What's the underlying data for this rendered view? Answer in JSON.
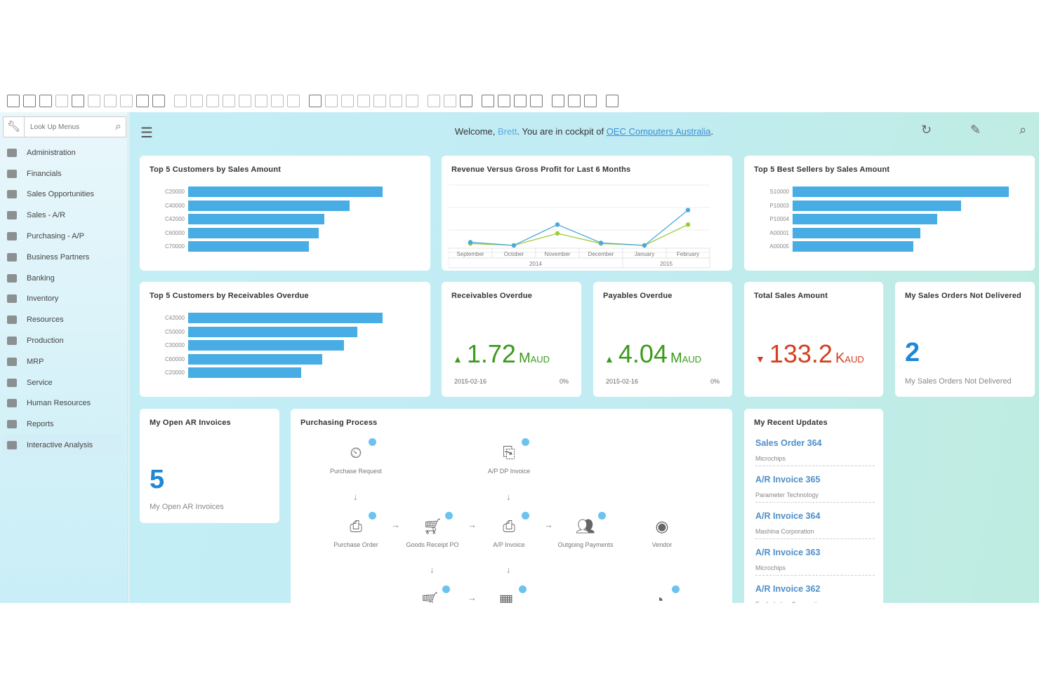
{
  "toolbar": {
    "icons": [
      "form-settings-icon",
      "print-icon",
      "email-icon",
      "export-pdf-icon",
      "print-preview-icon",
      "excel-icon",
      "word-icon",
      "text-icon",
      "move-icon",
      "layout-icon",
      "find-icon",
      "add-icon",
      "first-icon",
      "previous-icon",
      "next-icon",
      "last-icon",
      "filter-icon",
      "sort-icon",
      "base-document-icon",
      "target-document-icon",
      "journal-icon",
      "gross-profit-icon",
      "settings-icon",
      "columns-icon",
      "query-icon",
      "draft-icon",
      "edit-icon",
      "report-icon",
      "messages-icon",
      "calendar-icon",
      "users-icon",
      "cockpit-icon",
      "widgets-icon",
      "chart-icon",
      "analysis-icon",
      "help-icon"
    ]
  },
  "sidebar": {
    "search_placeholder": "Look Up Menus",
    "items": [
      {
        "label": "Administration"
      },
      {
        "label": "Financials"
      },
      {
        "label": "Sales Opportunities"
      },
      {
        "label": "Sales - A/R"
      },
      {
        "label": "Purchasing - A/P"
      },
      {
        "label": "Business Partners"
      },
      {
        "label": "Banking"
      },
      {
        "label": "Inventory"
      },
      {
        "label": "Resources"
      },
      {
        "label": "Production"
      },
      {
        "label": "MRP"
      },
      {
        "label": "Service"
      },
      {
        "label": "Human Resources"
      },
      {
        "label": "Reports"
      },
      {
        "label": "Interactive Analysis"
      }
    ],
    "selected": "Interactive Analysis"
  },
  "header": {
    "welcome_prefix": "Welcome, ",
    "user": "Brett",
    "welcome_mid": ". You are in cockpit of ",
    "company": "OEC Computers Australia",
    "welcome_suffix": "."
  },
  "colors": {
    "bar": "#48ade4",
    "revenue": "#4aa8dc",
    "gross_profit": "#9ccc3a",
    "up": "#3c9a1e",
    "down": "#d2401f",
    "accent": "#1e88d6"
  },
  "chart_data": [
    {
      "type": "bar",
      "title": "Top 5 Customers by Sales Amount",
      "categories": [
        "C20000",
        "C40000",
        "C42000",
        "C60000",
        "C70000"
      ],
      "values": [
        100,
        83,
        70,
        67,
        62
      ]
    },
    {
      "type": "line",
      "title": "Revenue Versus Gross Profit for Last 6 Months",
      "categories": [
        "September",
        "October",
        "November",
        "December",
        "January",
        "February"
      ],
      "groups": [
        {
          "label": "2014",
          "span": 4
        },
        {
          "label": "2015",
          "span": 2
        }
      ],
      "series": [
        {
          "values": [
            5,
            0,
            33,
            4,
            0,
            56
          ]
        },
        {
          "values": [
            3,
            0,
            19,
            3,
            0,
            33
          ]
        }
      ],
      "ylim": [
        0,
        100
      ],
      "grid": true
    },
    {
      "type": "bar",
      "title": "Top 5 Best Sellers by Sales Amount",
      "categories": [
        "S10000",
        "P10003",
        "P10004",
        "A00001",
        "A00005"
      ],
      "values": [
        100,
        78,
        67,
        59,
        56
      ]
    },
    {
      "type": "bar",
      "title": "Top 5 Customers by Receivables Overdue",
      "categories": [
        "C42000",
        "C50000",
        "C30000",
        "C60000",
        "C20000"
      ],
      "values": [
        100,
        87,
        80,
        69,
        58
      ]
    }
  ],
  "kpis": [
    {
      "title": "Receivables Overdue",
      "value": "1.72",
      "unit": "M",
      "unit_small": "AUD",
      "date": "2015-02-16",
      "change": "0%",
      "direction": "up"
    },
    {
      "title": "Payables Overdue",
      "value": "4.04",
      "unit": "M",
      "unit_small": "AUD",
      "date": "2015-02-16",
      "change": "0%",
      "direction": "up"
    },
    {
      "title": "Total Sales Amount",
      "value": "133.2",
      "unit": "K",
      "unit_small": "AUD",
      "direction": "down"
    }
  ],
  "sales_orders": {
    "title": "My Sales Orders Not Delivered",
    "value": "2",
    "label": "My Sales Orders Not Delivered"
  },
  "open_ar": {
    "title": "My Open AR Invoices",
    "value": "5",
    "label": "My Open AR Invoices"
  },
  "purchasing": {
    "title": "Purchasing Process",
    "nodes": [
      {
        "label": "Purchase Request",
        "icon": "purchase-request-icon"
      },
      {
        "label": "A/P DP Invoice",
        "icon": "ap-dp-invoice-icon"
      },
      {
        "label": "Purchase Order",
        "icon": "purchase-order-icon"
      },
      {
        "label": "Goods Receipt PO",
        "icon": "goods-receipt-icon"
      },
      {
        "label": "A/P Invoice",
        "icon": "ap-invoice-icon"
      },
      {
        "label": "Outgoing Payments",
        "icon": "outgoing-payments-icon"
      },
      {
        "label": "Vendor",
        "icon": "vendor-icon"
      }
    ]
  },
  "recent": {
    "title": "My Recent Updates",
    "items": [
      {
        "title": "Sales Order 364",
        "sub": "Microchips"
      },
      {
        "title": "A/R Invoice 365",
        "sub": "Parameter Technology"
      },
      {
        "title": "A/R Invoice 364",
        "sub": "Mashina Corporation"
      },
      {
        "title": "A/R Invoice 363",
        "sub": "Microchips"
      },
      {
        "title": "A/R Invoice 362",
        "sub": "Earthshaker Corporation"
      }
    ]
  }
}
